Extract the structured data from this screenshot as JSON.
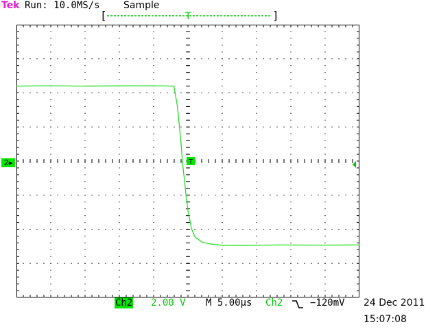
{
  "header": {
    "brand": "Tek",
    "run_status": "Run: 10.0MS/s",
    "acquisition_mode": "Sample",
    "trigger_label": "T"
  },
  "footer": {
    "channel": "Ch2",
    "volts_per_div": "2.00 V",
    "timebase": "M 5.00µs",
    "trigger_source": "Ch2",
    "trigger_slope_icon": "falling-edge-icon",
    "trigger_level": "−120mV",
    "date": "24 Dec 2011",
    "time": "15:07:08"
  },
  "markers": {
    "channel_marker": "2",
    "trigger_position_marker": "T"
  },
  "colors": {
    "trace": "#22dd22",
    "brand": "#e01ad1",
    "channel_bg": "#00e600",
    "channel_text": "#00c800",
    "grid": "#000000"
  },
  "chart_data": {
    "type": "line",
    "xlabel": "",
    "ylabel": "",
    "x_unit": "µs",
    "y_unit": "V",
    "xlim": [
      -23.5,
      25.5
    ],
    "ylim": [
      -8,
      8
    ],
    "series": [
      {
        "x": [
          -23.5,
          -19.0,
          -14.0,
          -9.0,
          -4.0,
          -1.0,
          -0.5,
          0.0,
          0.25,
          0.5,
          0.75,
          1.0,
          1.5,
          2.0,
          3.0,
          4.0,
          6.0,
          9.0,
          14.0,
          20.0,
          25.5
        ],
        "y": [
          4.4,
          4.42,
          4.4,
          4.41,
          4.42,
          4.4,
          3.2,
          1.1,
          -0.2,
          -1.1,
          -2.1,
          -2.9,
          -3.95,
          -4.45,
          -4.75,
          -4.85,
          -4.95,
          -4.95,
          -4.92,
          -4.93,
          -4.92
        ]
      }
    ]
  }
}
